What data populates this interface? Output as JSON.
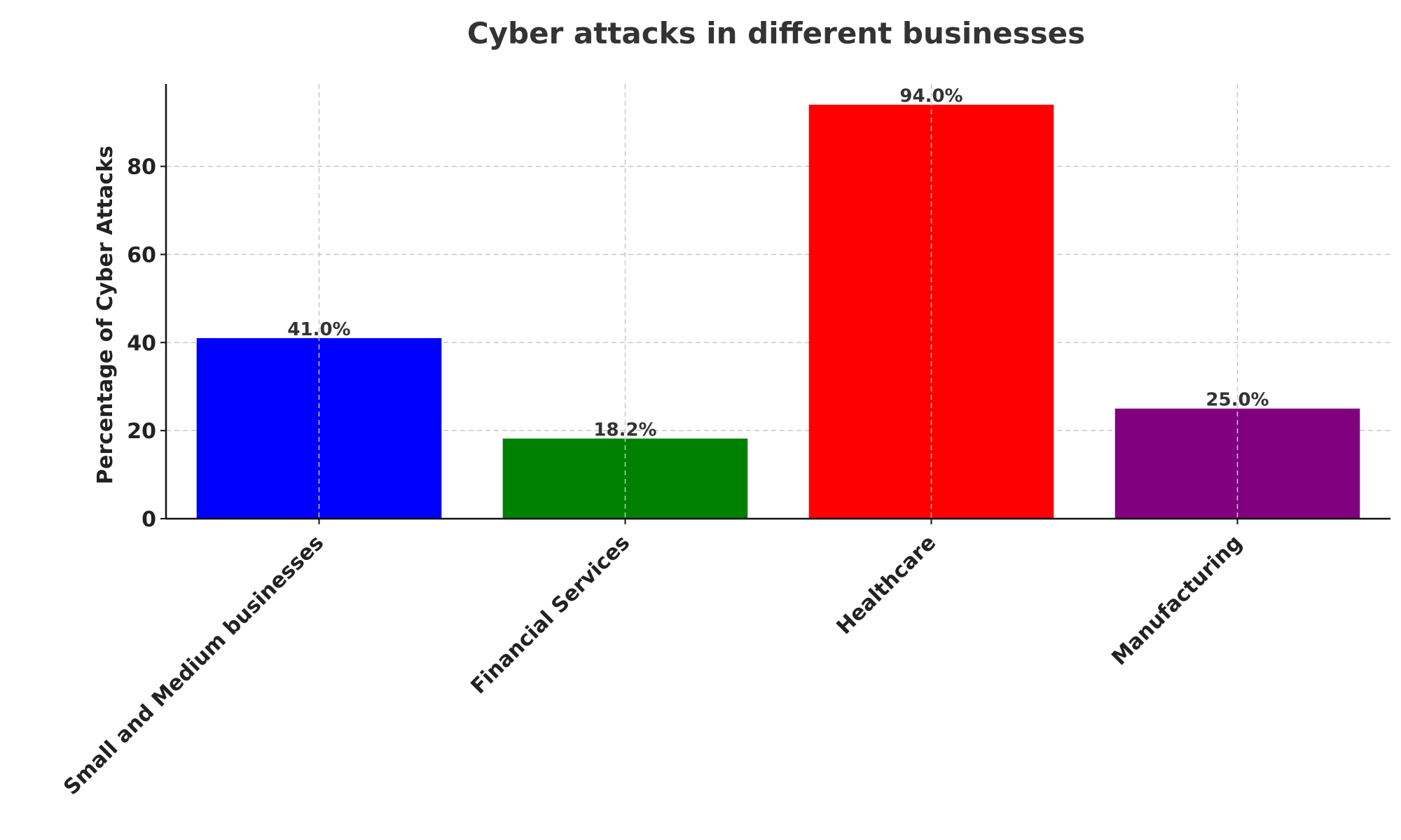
{
  "chart_data": {
    "type": "bar",
    "title": "Cyber attacks in different businesses",
    "xlabel": "",
    "ylabel": "Percentage of Cyber Attacks",
    "categories": [
      "Small and Medium businesses",
      "Financial Services",
      "Healthcare",
      "Manufacturing"
    ],
    "values": [
      41.0,
      18.2,
      94.0,
      25.0
    ],
    "data_labels": [
      "41.0%",
      "18.2%",
      "94.0%",
      "25.0%"
    ],
    "colors": [
      "#0000ff",
      "#008000",
      "#ff0000",
      "#800080"
    ],
    "yticks": [
      0,
      20,
      40,
      60,
      80
    ],
    "ylim": [
      0,
      98.7
    ],
    "grid": true,
    "legend": "none"
  }
}
